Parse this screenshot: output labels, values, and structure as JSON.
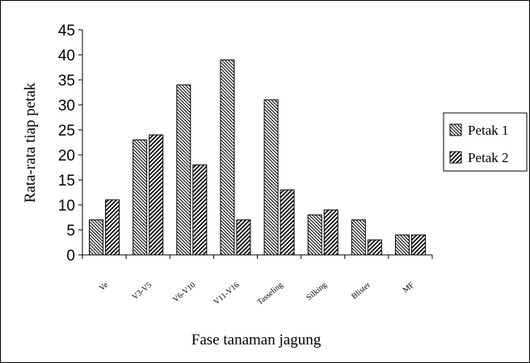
{
  "chart_data": {
    "type": "bar",
    "title": "",
    "xlabel": "Fase tanaman jagung",
    "ylabel": "Rata-rata tiap petak",
    "ylim": [
      0,
      45
    ],
    "yticks": [
      0,
      5,
      10,
      15,
      20,
      25,
      30,
      35,
      40,
      45
    ],
    "grid": false,
    "legend_position": "right",
    "categories": [
      "Ve",
      "V3-V5",
      "V6-V10",
      "V11-V16",
      "Tasseling",
      "Silking",
      "Blister",
      "MF"
    ],
    "series": [
      {
        "name": "Petak 1",
        "pattern": "diagonal-down",
        "values": [
          7,
          23,
          34,
          39,
          31,
          8,
          7,
          4
        ]
      },
      {
        "name": "Petak 2",
        "pattern": "diagonal-up",
        "values": [
          11,
          24,
          18,
          7,
          13,
          9,
          3,
          4
        ]
      }
    ],
    "colors": {
      "bar_fill": "#ffffff",
      "stroke": "#000000"
    }
  }
}
